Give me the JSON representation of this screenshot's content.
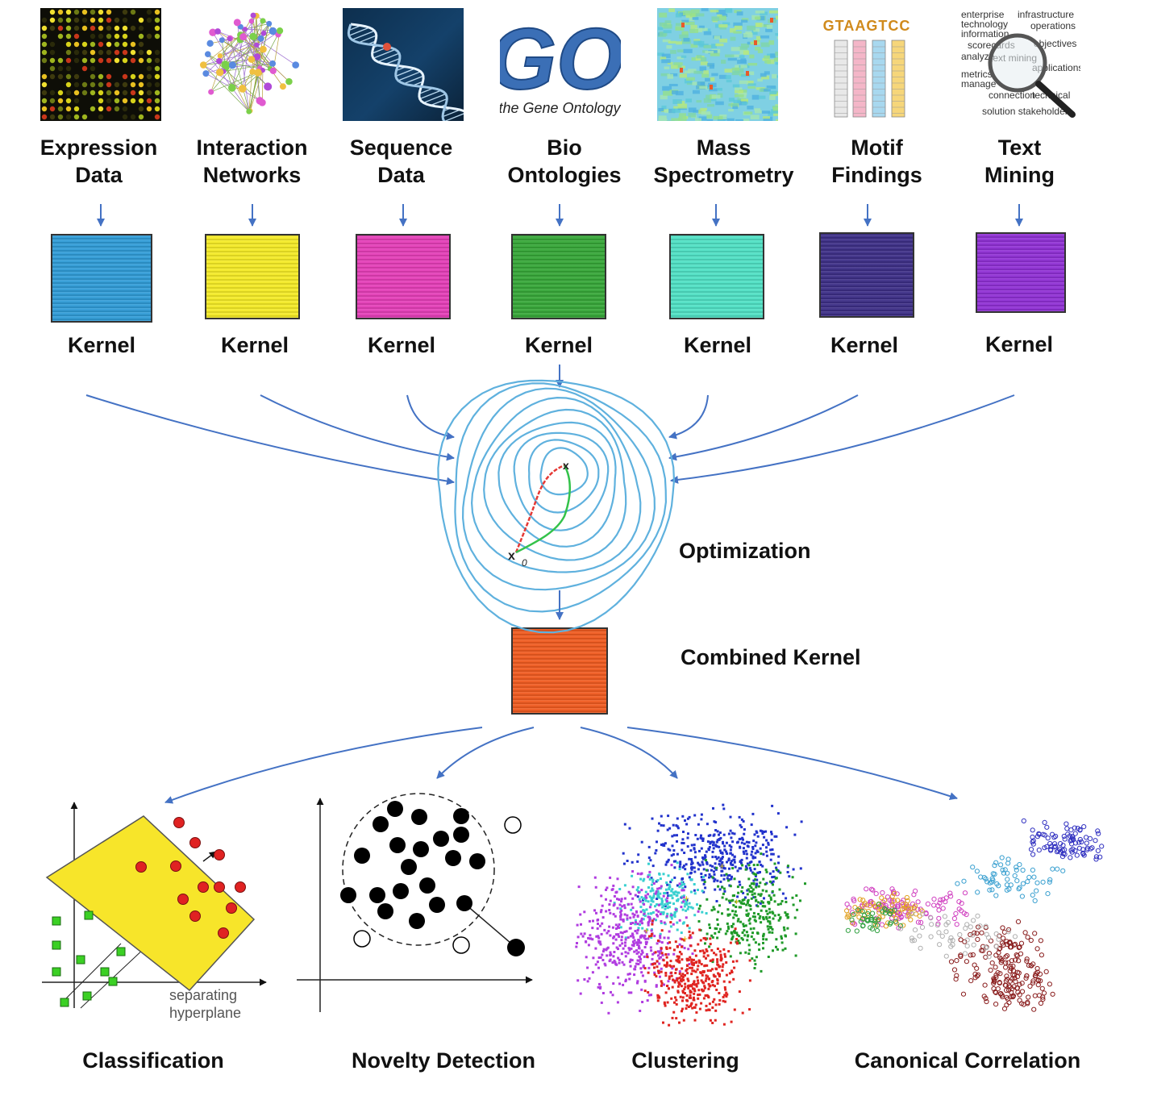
{
  "sources": [
    {
      "label": "Expression\nData",
      "kernel_label": "Kernel",
      "kernel_color": "#2f9bd6"
    },
    {
      "label": "Interaction\nNetworks",
      "kernel_label": "Kernel",
      "kernel_color": "#f4ea25"
    },
    {
      "label": "Sequence\nData",
      "kernel_label": "Kernel",
      "kernel_color": "#e43db7"
    },
    {
      "label": "Bio\nOntologies",
      "kernel_label": "Kernel",
      "kernel_color": "#35a637"
    },
    {
      "label": "Mass\nSpectrometry",
      "kernel_label": "Kernel",
      "kernel_color": "#4fe0c4"
    },
    {
      "label": "Motif\nFindings",
      "kernel_label": "Kernel",
      "kernel_color": "#3c2e86"
    },
    {
      "label": "Text\nMining",
      "kernel_label": "Kernel",
      "kernel_color": "#8f2fd4"
    }
  ],
  "go_logo": {
    "big": "GO",
    "small": "the Gene Ontology"
  },
  "text_mining_words": [
    "enterprise",
    "infrastructure",
    "technology",
    "operations",
    "information",
    "scorecards",
    "objectives",
    "analyze",
    "text mining",
    "metrics",
    "applications",
    "manage",
    "connection",
    "technical",
    "solution stakeholder"
  ],
  "motif_text": "GTAAGTCC",
  "optimization": {
    "label": "Optimization",
    "start_marker": "x",
    "start_subscript": "0",
    "end_marker": "x"
  },
  "combined": {
    "label": "Combined Kernel",
    "color": "#ef5a1f"
  },
  "classification_note": [
    "separating",
    "hyperplane"
  ],
  "outputs": [
    {
      "label": "Classification"
    },
    {
      "label": "Novelty Detection"
    },
    {
      "label": "Clustering"
    },
    {
      "label": "Canonical Correlation"
    }
  ],
  "colors": {
    "arrow": "#4472c4",
    "contour": "#5fb1de",
    "path_red": "#e53935",
    "path_green": "#33c24a"
  }
}
